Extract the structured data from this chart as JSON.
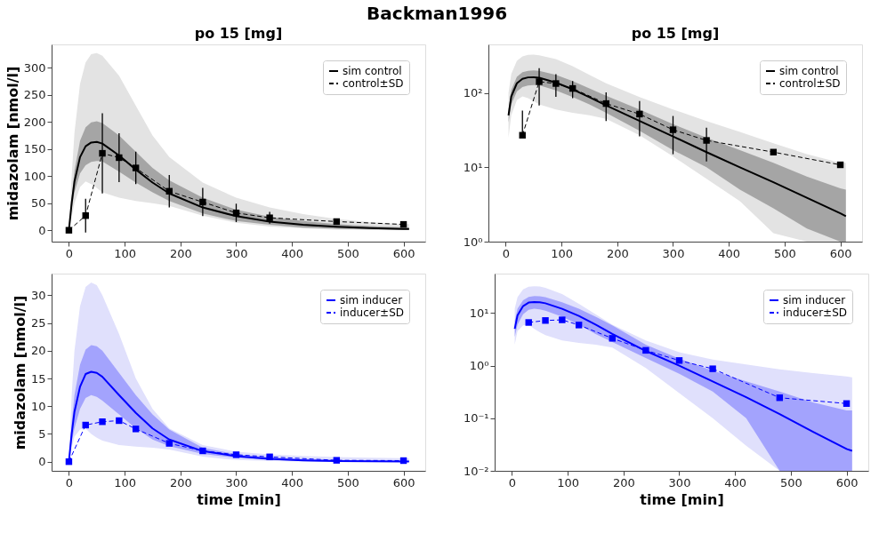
{
  "chart_data": [
    {
      "type": "line",
      "title": "Backman1996",
      "subtitle": "po 15 [mg]",
      "ylabel": "midazolam [nmol/l]",
      "xlim": [
        -31,
        639
      ],
      "xticks": [
        0,
        100,
        200,
        300,
        400,
        500,
        600
      ],
      "ylim": [
        -21,
        343
      ],
      "yticks": [
        0,
        50,
        100,
        150,
        200,
        250,
        300
      ],
      "grid": false,
      "legend": "top right",
      "series": [
        {
          "color": "#e3e3e3",
          "x": [
            0,
            5,
            10,
            20,
            30,
            40,
            50,
            60,
            90,
            120,
            150,
            180,
            240,
            300,
            360,
            420,
            480,
            540,
            600,
            610
          ],
          "values": [
            null,
            null,
            null,
            null,
            null,
            null,
            null,
            null,
            null,
            null,
            null,
            null,
            null,
            null,
            null,
            null,
            null,
            null,
            null,
            null
          ],
          "lower": [
            0,
            25,
            50,
            80,
            90,
            85,
            78,
            70,
            60,
            54,
            50,
            45,
            27,
            14,
            7,
            3.5,
            1.3,
            0.6,
            0.35,
            0.3
          ],
          "upper": [
            0,
            100,
            180,
            270,
            310,
            325,
            327,
            322,
            285,
            230,
            175,
            135,
            88,
            60,
            42,
            30,
            21,
            15,
            11.5,
            11.5
          ]
        },
        {
          "name": "sim control",
          "color": "#000000",
          "line_style": "solid",
          "x": [
            0,
            5,
            10,
            20,
            30,
            40,
            50,
            60,
            90,
            120,
            150,
            180,
            240,
            300,
            360,
            420,
            480,
            540,
            600,
            610
          ],
          "values": [
            0,
            50,
            90,
            135,
            155,
            162,
            163,
            160,
            138,
            112,
            88,
            68,
            42,
            26,
            16,
            10,
            6.3,
            3.9,
            2.4,
            2.2
          ],
          "lower": [
            0,
            40,
            70,
            105,
            120,
            126,
            128,
            127,
            108,
            88,
            70,
            54,
            31,
            17,
            10,
            5,
            2.8,
            1.5,
            0.8,
            0.7
          ],
          "upper": [
            0,
            60,
            110,
            165,
            190,
            199,
            201,
            198,
            175,
            145,
            115,
            92,
            60,
            38,
            25,
            17,
            11.5,
            7.5,
            5.2,
            5
          ]
        },
        {
          "name": "control±SD",
          "color": "#000000",
          "line_style": "dashed",
          "marker": "square",
          "x": [
            0,
            30,
            60,
            90,
            120,
            180,
            240,
            300,
            360,
            480,
            600
          ],
          "values": [
            0,
            27,
            142,
            134,
            115,
            72,
            52,
            32,
            23,
            16,
            10.8
          ],
          "errors": [
            null,
            31,
            74,
            45,
            30,
            30,
            26,
            17,
            11,
            null,
            null
          ]
        }
      ]
    },
    {
      "type": "line",
      "subtitle": "po 15 [mg]",
      "log": "y",
      "xlim": [
        -31,
        639
      ],
      "xticks": [
        0,
        100,
        200,
        300,
        400,
        500,
        600
      ],
      "ylim": [
        1,
        450
      ],
      "yticks": [
        {
          "value": 1,
          "label": "10⁰"
        },
        {
          "value": 10,
          "label": "10¹"
        },
        {
          "value": 100,
          "label": "10²"
        }
      ],
      "grid": false,
      "legend": "top right",
      "series": [
        {
          "color": "#e3e3e3",
          "x": [
            5,
            10,
            20,
            30,
            40,
            50,
            60,
            90,
            120,
            150,
            180,
            240,
            300,
            360,
            420,
            480,
            540,
            600,
            610
          ],
          "values": [
            null,
            null,
            null,
            null,
            null,
            null,
            null,
            null,
            null,
            null,
            null,
            null,
            null,
            null,
            null,
            null,
            null,
            null,
            null
          ],
          "lower": [
            25,
            50,
            80,
            90,
            85,
            78,
            70,
            60,
            54,
            50,
            45,
            27,
            14,
            7,
            3.5,
            1.3,
            1,
            1,
            1
          ],
          "upper": [
            100,
            180,
            270,
            310,
            325,
            327,
            322,
            285,
            230,
            175,
            135,
            88,
            60,
            42,
            30,
            21,
            15,
            11.5,
            11.5
          ]
        },
        {
          "name": "sim control",
          "color": "#000000",
          "line_style": "solid",
          "x": [
            5,
            10,
            20,
            30,
            40,
            50,
            60,
            90,
            120,
            150,
            180,
            240,
            300,
            360,
            420,
            480,
            540,
            600,
            610
          ],
          "values": [
            50,
            90,
            135,
            155,
            162,
            163,
            160,
            138,
            112,
            88,
            68,
            42,
            26,
            16,
            10,
            6.3,
            3.9,
            2.4,
            2.2
          ],
          "lower": [
            40,
            70,
            105,
            120,
            126,
            128,
            127,
            108,
            88,
            70,
            54,
            31,
            17,
            10,
            5,
            2.8,
            1.5,
            1,
            1
          ],
          "upper": [
            60,
            110,
            165,
            190,
            199,
            201,
            198,
            175,
            145,
            115,
            92,
            60,
            38,
            25,
            17,
            11.5,
            7.5,
            5.2,
            5
          ]
        },
        {
          "name": "control±SD",
          "color": "#000000",
          "line_style": "dashed",
          "marker": "square",
          "x": [
            30,
            60,
            90,
            120,
            180,
            240,
            300,
            360,
            480,
            600
          ],
          "values": [
            27,
            142,
            134,
            115,
            72,
            52,
            32,
            23,
            16,
            10.8
          ],
          "errors": [
            31,
            74,
            45,
            30,
            30,
            26,
            17,
            11,
            null,
            null
          ]
        }
      ]
    },
    {
      "type": "line",
      "xlabel": "time [min]",
      "ylabel": "midazolam [nmol/l]",
      "xlim": [
        -31,
        639
      ],
      "xticks": [
        0,
        100,
        200,
        300,
        400,
        500,
        600
      ],
      "ylim": [
        -1.65,
        33.9
      ],
      "yticks": [
        0,
        5,
        10,
        15,
        20,
        25,
        30
      ],
      "grid": false,
      "legend": "top right",
      "series": [
        {
          "color": "#e0e0fc",
          "x": [
            0,
            5,
            10,
            20,
            30,
            40,
            50,
            60,
            90,
            120,
            150,
            180,
            240,
            300,
            360,
            420,
            480,
            540,
            600,
            610
          ],
          "values": [
            null,
            null,
            null,
            null,
            null,
            null,
            null,
            null,
            null,
            null,
            null,
            null,
            null,
            null,
            null,
            null,
            null,
            null,
            null,
            null
          ],
          "lower": [
            0,
            2.5,
            4.5,
            5.8,
            6.0,
            5,
            4.3,
            3.8,
            3,
            2.7,
            2.5,
            2.2,
            0.9,
            0.3,
            0.1,
            0.03,
            0.01,
            0.01,
            0.01,
            0.01
          ],
          "upper": [
            0,
            12,
            20,
            28,
            31.5,
            32.3,
            31.8,
            30,
            23,
            15,
            9.5,
            6,
            3,
            1.8,
            1.3,
            1.05,
            0.85,
            0.72,
            0.62,
            0.6
          ]
        },
        {
          "name": "sim inducer",
          "color": "#0000ff",
          "line_style": "solid",
          "x": [
            0,
            5,
            10,
            20,
            30,
            40,
            50,
            60,
            90,
            120,
            150,
            180,
            240,
            300,
            360,
            420,
            480,
            540,
            600,
            610
          ],
          "values": [
            0,
            5,
            9,
            13.5,
            15.8,
            16.2,
            16,
            15.3,
            12,
            8.8,
            6,
            4,
            1.9,
            1.0,
            0.5,
            0.25,
            0.12,
            0.055,
            0.026,
            0.024
          ],
          "lower": [
            0,
            3.5,
            6,
            9.5,
            11.5,
            12,
            11.7,
            11,
            8.5,
            6,
            4,
            2.8,
            1.4,
            0.7,
            0.32,
            0.1,
            0.01,
            0.01,
            0.01,
            0.01
          ],
          "upper": [
            0,
            7,
            12,
            17.5,
            20.2,
            21,
            20.8,
            20,
            16,
            12,
            8.5,
            5.8,
            2.5,
            1.35,
            0.8,
            0.5,
            0.32,
            0.2,
            0.14,
            0.14
          ]
        },
        {
          "name": "inducer±SD",
          "color": "#0000ff",
          "line_style": "dashed",
          "marker": "square",
          "x": [
            0,
            30,
            60,
            90,
            120,
            180,
            240,
            300,
            360,
            480,
            600
          ],
          "values": [
            0,
            6.6,
            7.2,
            7.4,
            5.9,
            3.3,
            1.95,
            1.25,
            0.87,
            0.245,
            0.19
          ]
        }
      ]
    },
    {
      "type": "line",
      "xlabel": "time [min]",
      "log": "y",
      "xlim": [
        -31,
        639
      ],
      "xticks": [
        0,
        100,
        200,
        300,
        400,
        500,
        600
      ],
      "ylim": [
        0.01,
        56
      ],
      "yticks": [
        {
          "value": 0.01,
          "label": "10⁻²"
        },
        {
          "value": 0.1,
          "label": "10⁻¹"
        },
        {
          "value": 1,
          "label": "10⁰"
        },
        {
          "value": 10,
          "label": "10¹"
        }
      ],
      "grid": false,
      "legend": "top right",
      "series": [
        {
          "color": "#e0e0fc",
          "x": [
            5,
            10,
            20,
            30,
            40,
            50,
            60,
            90,
            120,
            150,
            180,
            240,
            300,
            360,
            420,
            480,
            540,
            600,
            610
          ],
          "values": [
            null,
            null,
            null,
            null,
            null,
            null,
            null,
            null,
            null,
            null,
            null,
            null,
            null,
            null,
            null,
            null,
            null,
            null,
            null
          ],
          "lower": [
            2.5,
            4.5,
            5.8,
            6.0,
            5,
            4.3,
            3.8,
            3,
            2.7,
            2.5,
            2.2,
            0.9,
            0.3,
            0.1,
            0.03,
            0.01,
            0.01,
            0.01,
            0.01
          ],
          "upper": [
            12,
            20,
            28,
            31.5,
            32.3,
            31.8,
            30,
            23,
            15,
            9.5,
            6,
            3,
            1.8,
            1.3,
            1.05,
            0.85,
            0.72,
            0.62,
            0.6
          ]
        },
        {
          "name": "sim inducer",
          "color": "#0000ff",
          "line_style": "solid",
          "x": [
            5,
            10,
            20,
            30,
            40,
            50,
            60,
            90,
            120,
            150,
            180,
            240,
            300,
            360,
            420,
            480,
            540,
            600,
            610
          ],
          "values": [
            5,
            9,
            13.5,
            15.8,
            16.2,
            16,
            15.3,
            12,
            8.8,
            6,
            4,
            1.9,
            1.0,
            0.5,
            0.25,
            0.12,
            0.055,
            0.026,
            0.024
          ],
          "lower": [
            3.5,
            6,
            9.5,
            11.5,
            12,
            11.7,
            11,
            8.5,
            6,
            4,
            2.8,
            1.4,
            0.7,
            0.32,
            0.1,
            0.01,
            0.01,
            0.01,
            0.01
          ],
          "upper": [
            7,
            12,
            17.5,
            20.2,
            21,
            20.8,
            20,
            16,
            12,
            8.5,
            5.8,
            2.5,
            1.35,
            0.8,
            0.5,
            0.32,
            0.2,
            0.14,
            0.14
          ]
        },
        {
          "name": "inducer±SD",
          "color": "#0000ff",
          "line_style": "dashed",
          "marker": "square",
          "x": [
            30,
            60,
            90,
            120,
            180,
            240,
            300,
            360,
            480,
            600
          ],
          "values": [
            6.6,
            7.2,
            7.4,
            5.9,
            3.3,
            1.95,
            1.25,
            0.87,
            0.245,
            0.19
          ]
        }
      ]
    }
  ]
}
